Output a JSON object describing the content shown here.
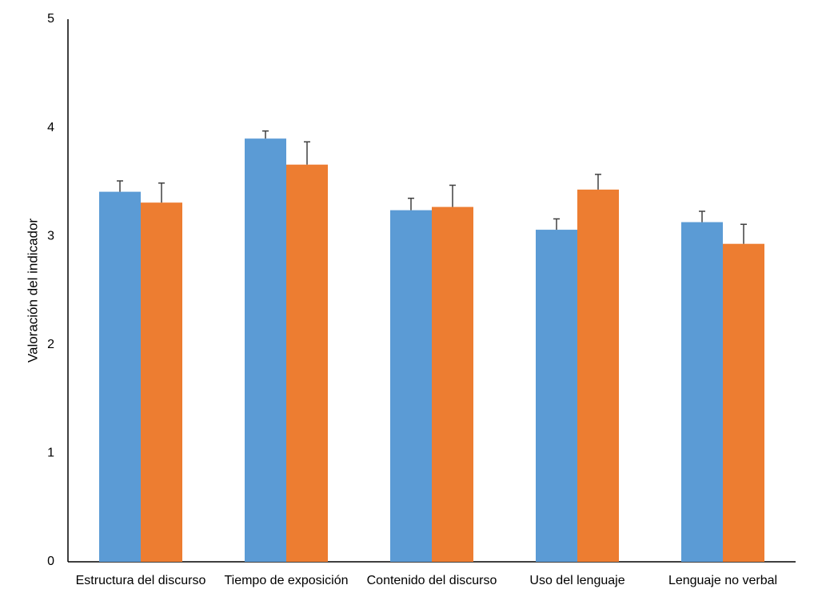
{
  "chart_data": {
    "type": "bar",
    "y_label": "Valoración del indicador",
    "categories": [
      "Estructura del discurso",
      "Tiempo de exposición",
      "Contenido del discurso",
      "Uso del lenguaje",
      "Lenguaje no verbal"
    ],
    "series": [
      {
        "color": "#5b9bd5",
        "values": [
          3.41,
          3.9,
          3.24,
          3.06,
          3.13
        ],
        "errors": [
          0.1,
          0.07,
          0.11,
          0.1,
          0.1
        ]
      },
      {
        "color": "#ed7d31",
        "values": [
          3.31,
          3.66,
          3.27,
          3.43,
          2.93
        ],
        "errors": [
          0.18,
          0.21,
          0.2,
          0.14,
          0.18
        ]
      }
    ],
    "ylim": [
      0,
      5
    ],
    "yticks": [
      0,
      1,
      2,
      3,
      4,
      5
    ],
    "grid": false
  }
}
